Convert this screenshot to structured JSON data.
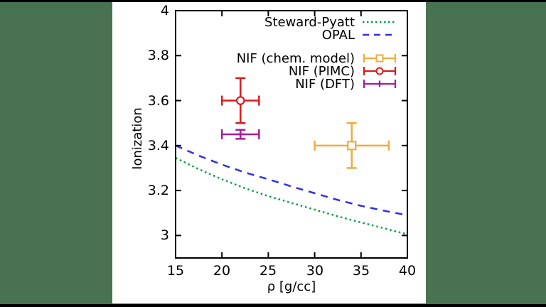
{
  "frame": {
    "background_color": "#487251",
    "figure_background": "#ffffff",
    "letterbox_bar_color": "#000000",
    "axis_color": "#000000"
  },
  "chart_data": {
    "type": "line",
    "title": "",
    "xlabel": "ρ [g/cc]",
    "ylabel": "Ionization",
    "xlim": [
      15,
      40
    ],
    "ylim": [
      2.9,
      4.0
    ],
    "grid": false,
    "legend_position": "top-right-inside",
    "x_ticks": [
      15,
      20,
      25,
      30,
      35,
      40
    ],
    "x_tick_labels": [
      "15",
      "20",
      "25",
      "30",
      "35",
      "40"
    ],
    "y_ticks": [
      4.0,
      3.8,
      3.6,
      3.4,
      3.2,
      3.0
    ],
    "y_tick_labels": [
      "4",
      "3.8",
      "3.6",
      "3.4",
      "3.2",
      "3"
    ],
    "series": [
      {
        "name": "Steward-Pyatt",
        "style": "dotted",
        "color": "#00a03c",
        "x": [
          15,
          17.5,
          20,
          22.5,
          25,
          27.5,
          30,
          32.5,
          35,
          37.5,
          40
        ],
        "y": [
          3.345,
          3.295,
          3.25,
          3.21,
          3.175,
          3.145,
          3.115,
          3.085,
          3.058,
          3.032,
          3.005
        ]
      },
      {
        "name": "OPAL",
        "style": "dashed",
        "color": "#3030e8",
        "x": [
          15,
          17.5,
          20,
          22.5,
          25,
          27.5,
          30,
          32.5,
          35,
          37.5,
          40
        ],
        "y": [
          3.4,
          3.355,
          3.315,
          3.28,
          3.25,
          3.218,
          3.188,
          3.158,
          3.132,
          3.11,
          3.09
        ]
      }
    ],
    "points": [
      {
        "name": "NIF (chem. model)",
        "marker": "square",
        "color": "#f0ab3e",
        "x": 34,
        "y": 3.4,
        "xerr": 4.0,
        "yerr": 0.1
      },
      {
        "name": "NIF (PIMC)",
        "marker": "circle",
        "color": "#dc1a1a",
        "x": 22,
        "y": 3.6,
        "xerr": 2.0,
        "yerr": 0.1
      },
      {
        "name": "NIF (DFT)",
        "marker": "plus",
        "color": "#a51fa0",
        "x": 22,
        "y": 3.45,
        "xerr": 2.0,
        "yerr": 0.02
      }
    ]
  }
}
